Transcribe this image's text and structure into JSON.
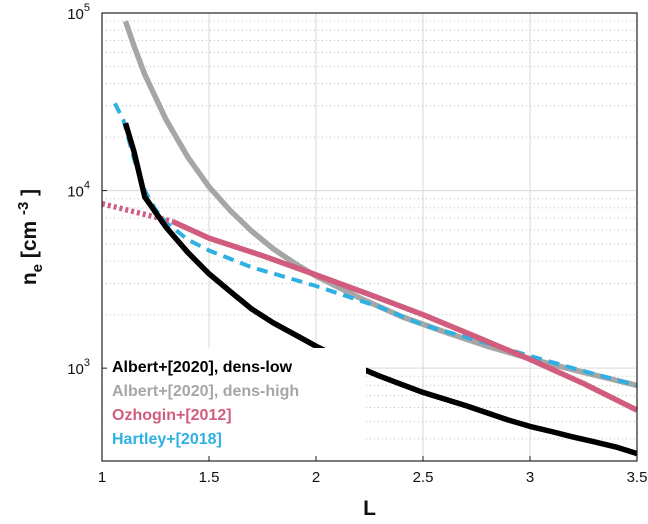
{
  "chart_data": {
    "type": "line",
    "xlabel": "L",
    "ylabel": "n_e [cm^-3]",
    "xlim": [
      1,
      3.5
    ],
    "ylim": [
      300,
      100000
    ],
    "yscale": "log",
    "grid": true,
    "legend_position": "bottom-left",
    "x_ticks": [
      "1",
      "1.5",
      "2",
      "2.5",
      "3",
      "3.5"
    ],
    "y_ticks": [
      {
        "value": 1000,
        "base": "10",
        "exp": "3"
      },
      {
        "value": 10000,
        "base": "10",
        "exp": "4"
      },
      {
        "value": 100000,
        "base": "10",
        "exp": "5"
      }
    ],
    "series": [
      {
        "name": "Albert+[2020], dens-low",
        "color": "#000000",
        "style": "solid",
        "x": [
          1.11,
          1.15,
          1.2,
          1.3,
          1.4,
          1.5,
          1.6,
          1.7,
          1.8,
          1.9,
          2.0,
          2.1,
          2.2,
          2.3,
          2.4,
          2.5,
          2.6,
          2.7,
          2.8,
          2.9,
          3.0,
          3.1,
          3.2,
          3.3,
          3.4,
          3.5
        ],
        "y": [
          24000,
          16500,
          9200,
          6200,
          4500,
          3400,
          2700,
          2150,
          1800,
          1550,
          1330,
          1160,
          1010,
          900,
          810,
          730,
          670,
          615,
          560,
          510,
          470,
          440,
          410,
          385,
          360,
          330
        ]
      },
      {
        "name": "Albert+[2020], dens-high",
        "color": "#a6a6a6",
        "style": "solid",
        "x": [
          1.11,
          1.15,
          1.2,
          1.3,
          1.4,
          1.5,
          1.6,
          1.7,
          1.8,
          1.9,
          2.0,
          2.2,
          2.4,
          2.6,
          2.8,
          3.0,
          3.2,
          3.5
        ],
        "y": [
          90000,
          65000,
          45000,
          25000,
          15500,
          10500,
          7700,
          5900,
          4700,
          3900,
          3300,
          2500,
          1950,
          1600,
          1330,
          1130,
          980,
          800
        ]
      },
      {
        "name": "Ozhogin+[2012]",
        "color": "#d15d7e",
        "style": "solid",
        "dotted_extension_x": [
          1.0,
          1.33
        ],
        "x": [
          1.33,
          1.5,
          1.75,
          2.0,
          2.25,
          2.5,
          2.75,
          3.0,
          3.25,
          3.5
        ],
        "y": [
          6700,
          5400,
          4300,
          3350,
          2600,
          2000,
          1500,
          1120,
          820,
          580
        ]
      },
      {
        "name": "Hartley+[2018]",
        "color": "#2eb0e3",
        "style": "dashed",
        "x": [
          1.06,
          1.1,
          1.15,
          1.2,
          1.25,
          1.3,
          1.4,
          1.5,
          1.7,
          2.0,
          2.3,
          2.5,
          2.8,
          3.0,
          3.2,
          3.5
        ],
        "y": [
          31000,
          25000,
          15000,
          10000,
          7800,
          6600,
          5300,
          4600,
          3700,
          2900,
          2200,
          1750,
          1380,
          1170,
          1000,
          800
        ]
      }
    ]
  }
}
